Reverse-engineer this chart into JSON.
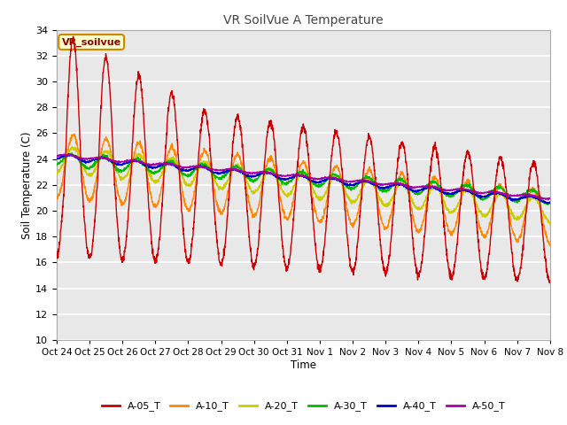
{
  "title": "VR SoilVue A Temperature",
  "xlabel": "Time",
  "ylabel": "Soil Temperature (C)",
  "ylim": [
    10,
    34
  ],
  "yticks": [
    10,
    12,
    14,
    16,
    18,
    20,
    22,
    24,
    26,
    28,
    30,
    32,
    34
  ],
  "plot_bg_color": "#e8e8e8",
  "fig_bg_color": "#ffffff",
  "grid_color": "#ffffff",
  "series_colors": {
    "A-05_T": "#cc0000",
    "A-10_T": "#ff8800",
    "A-20_T": "#cccc00",
    "A-30_T": "#00bb00",
    "A-40_T": "#0000cc",
    "A-50_T": "#aa00aa"
  },
  "legend_label": "VR_soilvue",
  "legend_bg": "#ffffcc",
  "legend_border": "#cc8800",
  "tick_labels": [
    "Oct 24",
    "Oct 25",
    "Oct 26",
    "Oct 27",
    "Oct 28",
    "Oct 29",
    "Oct 30",
    "Oct 31",
    "Nov 1",
    "Nov 2",
    "Nov 3",
    "Nov 4",
    "Nov 5",
    "Nov 6",
    "Nov 7",
    "Nov 8"
  ],
  "n_days": 15,
  "points_per_day": 144
}
